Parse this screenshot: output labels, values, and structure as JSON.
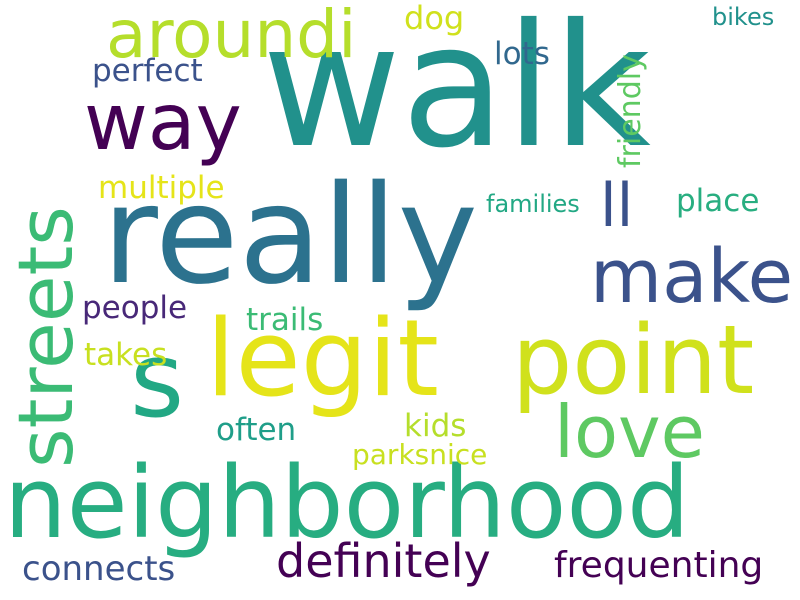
{
  "words": [
    {
      "text": "walk",
      "color": "#21918c"
    },
    {
      "text": "really",
      "color": "#2c728e"
    },
    {
      "text": "streets",
      "color": "#3bbb75"
    },
    {
      "text": "s",
      "color": "#22a884"
    },
    {
      "text": "legit",
      "color": "#e5e419"
    },
    {
      "text": "point",
      "color": "#d0e11c"
    },
    {
      "text": "neighborhood",
      "color": "#27ad81"
    },
    {
      "text": "way",
      "color": "#440154"
    },
    {
      "text": "aroundi",
      "color": "#b5de2b"
    },
    {
      "text": "make",
      "color": "#3b528b"
    },
    {
      "text": "love",
      "color": "#5ec962"
    },
    {
      "text": "ll",
      "color": "#3b528b"
    },
    {
      "text": "definitely",
      "color": "#440154"
    },
    {
      "text": "frequenting",
      "color": "#440154"
    },
    {
      "text": "connects",
      "color": "#3b528b"
    },
    {
      "text": "perfect",
      "color": "#3b528b"
    },
    {
      "text": "multiple",
      "color": "#e5e419"
    },
    {
      "text": "friendly",
      "color": "#5ec962"
    },
    {
      "text": "place",
      "color": "#28ae80"
    },
    {
      "text": "families",
      "color": "#22a884"
    },
    {
      "text": "dog",
      "color": "#d0e11c"
    },
    {
      "text": "lots",
      "color": "#31688e"
    },
    {
      "text": "bikes",
      "color": "#21918c"
    },
    {
      "text": "people",
      "color": "#482878"
    },
    {
      "text": "trails",
      "color": "#3bbb75"
    },
    {
      "text": "takes",
      "color": "#c8e020"
    },
    {
      "text": "often",
      "color": "#1f9e89"
    },
    {
      "text": "kids",
      "color": "#b5de2b"
    },
    {
      "text": "parksnice",
      "color": "#c8e020"
    }
  ]
}
